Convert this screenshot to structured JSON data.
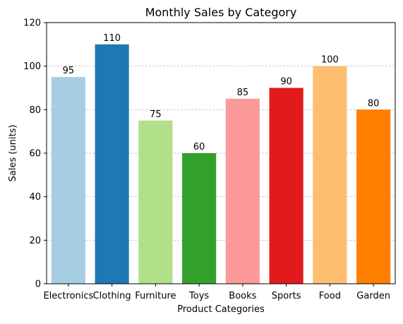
{
  "chart_data": {
    "type": "bar",
    "title": "Monthly Sales by Category",
    "xlabel": "Product Categories",
    "ylabel": "Sales (units)",
    "ylim": [
      0,
      120
    ],
    "yticks": [
      0,
      20,
      40,
      60,
      80,
      100,
      120
    ],
    "grid": "y-dashed",
    "categories": [
      "Electronics",
      "Clothing",
      "Furniture",
      "Toys",
      "Books",
      "Sports",
      "Food",
      "Garden"
    ],
    "values": [
      95,
      110,
      75,
      60,
      85,
      90,
      100,
      80
    ],
    "colors": [
      "#a6cee3",
      "#1f78b4",
      "#b2df8a",
      "#33a02c",
      "#fb9a99",
      "#e31a1c",
      "#fdbf6f",
      "#ff7f00"
    ],
    "data_labels": [
      "95",
      "110",
      "75",
      "60",
      "85",
      "90",
      "100",
      "80"
    ]
  }
}
